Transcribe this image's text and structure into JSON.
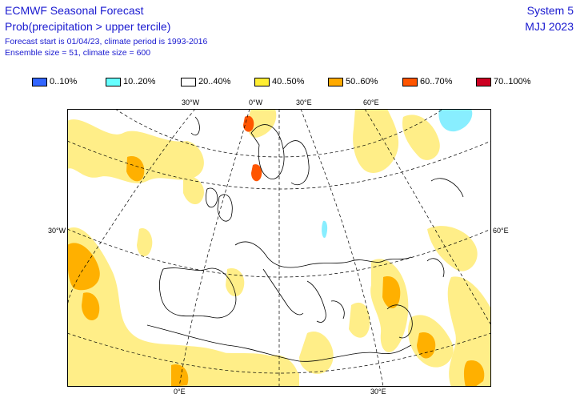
{
  "header": {
    "title": "ECMWF Seasonal Forecast",
    "subtitle": "Prob(precipitation > upper tercile)",
    "line3": "Forecast start is 01/04/23, climate period is 1993-2016",
    "line4": "Ensemble size = 51, climate size = 600",
    "system": "System 5",
    "period": "MJJ 2023"
  },
  "legend": [
    {
      "label": "0..10%",
      "color": "#3366ff"
    },
    {
      "label": "10..20%",
      "color": "#66ffff"
    },
    {
      "label": "20..40%",
      "color": "#ffffff"
    },
    {
      "label": "40..50%",
      "color": "#ffee33"
    },
    {
      "label": "50..60%",
      "color": "#ffaa00"
    },
    {
      "label": "60..70%",
      "color": "#ff5500"
    },
    {
      "label": "70..100%",
      "color": "#cc0022"
    }
  ],
  "axis_labels": {
    "top": [
      "30°W",
      "0°W",
      "30°E",
      "60°E"
    ],
    "left": "30°W",
    "right": "60°E",
    "bottom": [
      "0°E",
      "30°E"
    ]
  },
  "colors": {
    "light": "#ffee88",
    "medium": "#ffb000",
    "strong": "#ff5500",
    "cyan": "#88eeff",
    "coast": "#000000",
    "grid": "#000000"
  }
}
